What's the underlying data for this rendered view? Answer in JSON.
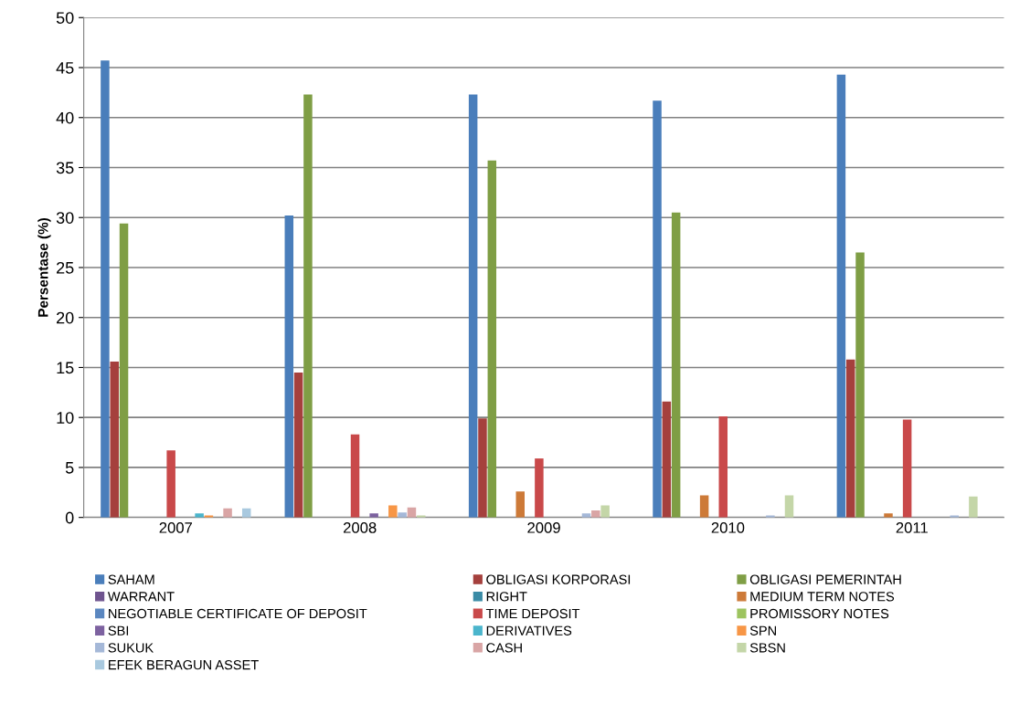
{
  "chart_data": {
    "type": "bar",
    "ylabel": "Persentase (%)",
    "categories": [
      "2007",
      "2008",
      "2009",
      "2010",
      "2011"
    ],
    "ylim": [
      0,
      50
    ],
    "yticks": [
      0,
      5,
      10,
      15,
      20,
      25,
      30,
      35,
      40,
      45,
      50
    ],
    "grid": "y",
    "legend": "bottom",
    "series": [
      {
        "name": "SAHAM",
        "color": "#4a7ebb",
        "values": [
          45.7,
          30.2,
          42.3,
          41.7,
          44.3
        ]
      },
      {
        "name": "OBLIGASI KORPORASI",
        "color": "#a5403d",
        "values": [
          15.6,
          14.5,
          9.9,
          11.6,
          15.8
        ]
      },
      {
        "name": "OBLIGASI PEMERINTAH",
        "color": "#7f9e45",
        "values": [
          29.4,
          42.3,
          35.7,
          30.5,
          26.5
        ]
      },
      {
        "name": "WARRANT",
        "color": "#6f548f",
        "values": [
          0,
          0,
          0,
          0,
          0
        ]
      },
      {
        "name": "RIGHT",
        "color": "#3a8ba6",
        "values": [
          0,
          0,
          0,
          0,
          0
        ]
      },
      {
        "name": "MEDIUM TERM NOTES",
        "color": "#cd7a38",
        "values": [
          0,
          0,
          2.6,
          2.2,
          0.4
        ]
      },
      {
        "name": "NEGOTIABLE CERTIFICATE OF DEPOSIT",
        "color": "#5b87c0",
        "values": [
          0,
          0,
          0,
          0,
          0
        ]
      },
      {
        "name": "TIME DEPOSIT",
        "color": "#c9494a",
        "values": [
          6.7,
          8.3,
          5.9,
          10.1,
          9.8
        ]
      },
      {
        "name": "PROMISSORY NOTES",
        "color": "#9dc45f",
        "values": [
          0,
          0,
          0,
          0,
          0
        ]
      },
      {
        "name": "SBI",
        "color": "#7d62a0",
        "values": [
          0,
          0.4,
          0,
          0,
          0
        ]
      },
      {
        "name": "DERIVATIVES",
        "color": "#4bb5cc",
        "values": [
          0.4,
          0,
          0,
          0,
          0
        ]
      },
      {
        "name": "SPN",
        "color": "#f79646",
        "values": [
          0.2,
          1.2,
          0,
          0,
          0
        ]
      },
      {
        "name": "SUKUK",
        "color": "#a5b8d8",
        "values": [
          0,
          0.5,
          0.4,
          0.2,
          0.2
        ]
      },
      {
        "name": "CASH",
        "color": "#d9a5a5",
        "values": [
          0.9,
          1.0,
          0.7,
          0,
          0
        ]
      },
      {
        "name": "SBSN",
        "color": "#c4d6a8",
        "values": [
          0,
          0.2,
          1.2,
          2.2,
          2.1
        ]
      },
      {
        "name": "EFEK BERAGUN ASSET",
        "color": "#a9c9df",
        "values": [
          0.9,
          0,
          0,
          0,
          0
        ]
      }
    ]
  }
}
